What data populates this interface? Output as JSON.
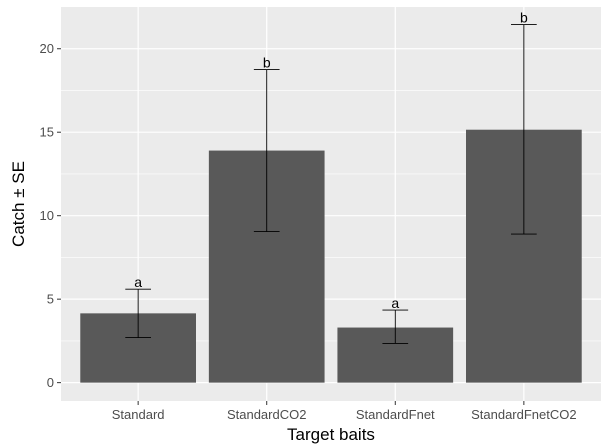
{
  "chart_data": {
    "type": "bar",
    "title": "",
    "xlabel": "Target baits",
    "ylabel": "Catch ± SE",
    "categories": [
      "Standard",
      "StandardCO2",
      "StandardFnet",
      "StandardFnetCO2"
    ],
    "values": [
      4.15,
      13.9,
      3.3,
      15.15
    ],
    "error_lower": [
      2.7,
      9.05,
      2.35,
      8.9
    ],
    "error_upper": [
      5.6,
      18.75,
      4.35,
      21.45
    ],
    "significance_labels": [
      "a",
      "b",
      "a",
      "b"
    ],
    "ylim": [
      -1.1,
      22.5
    ],
    "yticks": [
      0,
      5,
      10,
      15,
      20
    ],
    "grid": true,
    "legend": "none",
    "colors": {
      "panel_background": "#ebebeb",
      "grid": "#ffffff",
      "bar_fill": "#595959",
      "error_bar": "#000000"
    }
  }
}
